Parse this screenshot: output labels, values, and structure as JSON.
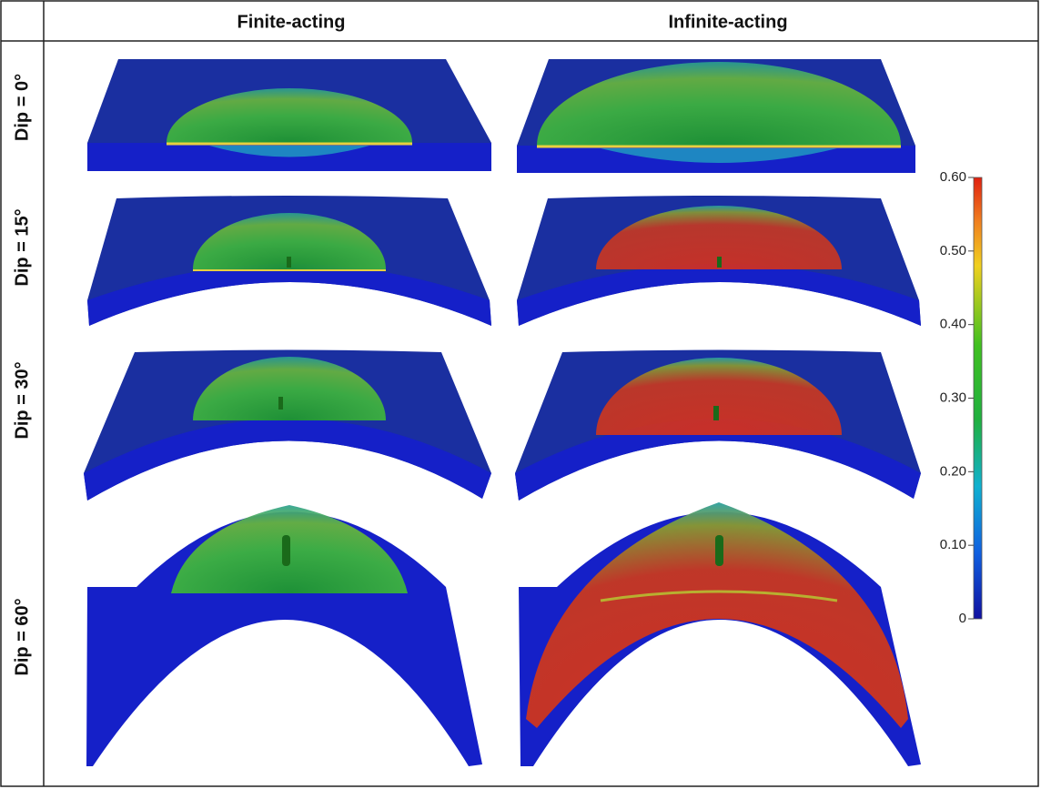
{
  "header": {
    "columns": [
      "Finite-acting",
      "Infinite-acting"
    ]
  },
  "rows": [
    {
      "label": "Dip = 0°"
    },
    {
      "label": "Dip = 15°"
    },
    {
      "label": "Dip = 30°"
    },
    {
      "label": "Dip = 60°"
    }
  ],
  "colorbar": {
    "range": [
      0,
      0.6
    ],
    "ticks": [
      0,
      {
        "value": 0.1,
        "label": "0.10"
      },
      {
        "value": 0.2,
        "label": "0.20"
      },
      {
        "value": 0.3,
        "label": "0.30"
      },
      {
        "value": 0.4,
        "label": "0.40"
      },
      {
        "value": 0.5,
        "label": "0.50"
      },
      {
        "value": 0.6,
        "label": "0.60"
      }
    ]
  }
}
